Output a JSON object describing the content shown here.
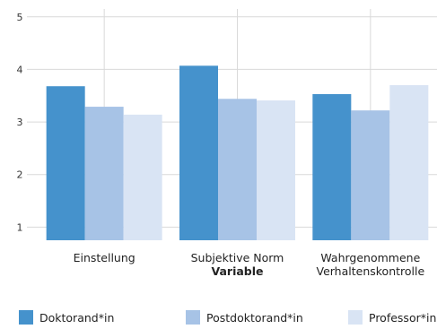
{
  "chart_data": {
    "type": "bar",
    "title": "",
    "xlabel": "Variable",
    "ylabel": "",
    "ylim": [
      0.75,
      5.15
    ],
    "yticks": [
      1,
      2,
      3,
      4,
      5
    ],
    "grid": true,
    "legend_position": "bottom",
    "categories": [
      [
        "Einstellung"
      ],
      [
        "Subjektive Norm"
      ],
      [
        "Wahrgenommene",
        "Verhaltenskontrolle"
      ]
    ],
    "series": [
      {
        "name": "Doktorand*in",
        "color": "#4592cc",
        "values": [
          3.68,
          4.07,
          3.53
        ]
      },
      {
        "name": "Postdoktorand*in",
        "color": "#a7c3e6",
        "values": [
          3.29,
          3.44,
          3.22
        ]
      },
      {
        "name": "Professor*in",
        "color": "#d9e4f4",
        "values": [
          3.14,
          3.41,
          3.7
        ]
      }
    ]
  }
}
